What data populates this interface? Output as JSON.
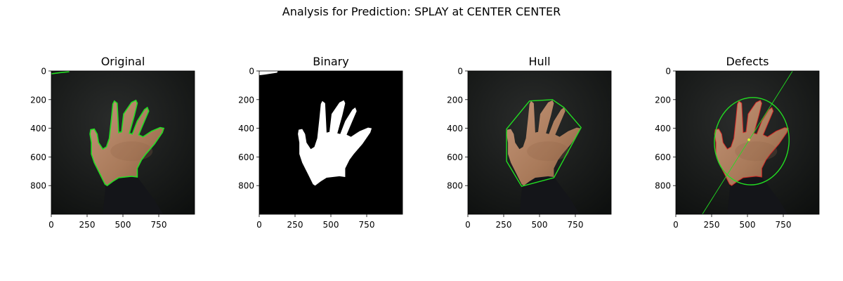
{
  "figure": {
    "suptitle": "Analysis for Prediction: SPLAY at CENTER CENTER"
  },
  "colors": {
    "background_dark": "#151716",
    "skin": "#b98a6a",
    "skin_shadow": "#8f6446",
    "sleeve": "#141519",
    "contour_green": "#22dd22",
    "hull_green": "#22dd22",
    "defect_red": "#dd2222",
    "mask_white": "#ffffff",
    "mask_black": "#000000"
  },
  "chart_data": [
    {
      "type": "image",
      "title": "Original",
      "xlim": [
        0,
        1000
      ],
      "ylim": [
        1000,
        0
      ],
      "xticks": [
        0,
        250,
        500,
        750
      ],
      "yticks": [
        0,
        200,
        400,
        600,
        800
      ],
      "overlay": "contour"
    },
    {
      "type": "image",
      "title": "Binary",
      "xlim": [
        0,
        1000
      ],
      "ylim": [
        1000,
        0
      ],
      "xticks": [
        0,
        250,
        500,
        750
      ],
      "yticks": [
        0,
        200,
        400,
        600,
        800
      ],
      "overlay": "mask"
    },
    {
      "type": "image",
      "title": "Hull",
      "xlim": [
        0,
        1000
      ],
      "ylim": [
        1000,
        0
      ],
      "xticks": [
        0,
        250,
        500,
        750
      ],
      "yticks": [
        0,
        200,
        400,
        600,
        800
      ],
      "overlay": "hull",
      "hull_points": [
        [
          270,
          405
        ],
        [
          430,
          210
        ],
        [
          590,
          200
        ],
        [
          670,
          255
        ],
        [
          790,
          395
        ],
        [
          600,
          745
        ],
        [
          375,
          805
        ],
        [
          270,
          630
        ]
      ]
    },
    {
      "type": "image",
      "title": "Defects",
      "xlim": [
        0,
        1000
      ],
      "ylim": [
        1000,
        0
      ],
      "xticks": [
        0,
        250,
        500,
        750
      ],
      "yticks": [
        0,
        200,
        400,
        600,
        800
      ],
      "overlay": "defects",
      "ellipse": {
        "cx": 530,
        "cy": 490,
        "rx": 260,
        "ry": 305,
        "angle": 5
      },
      "center_point": [
        510,
        480
      ],
      "axis_line": [
        [
          185,
          1000
        ],
        [
          815,
          0
        ]
      ]
    }
  ]
}
